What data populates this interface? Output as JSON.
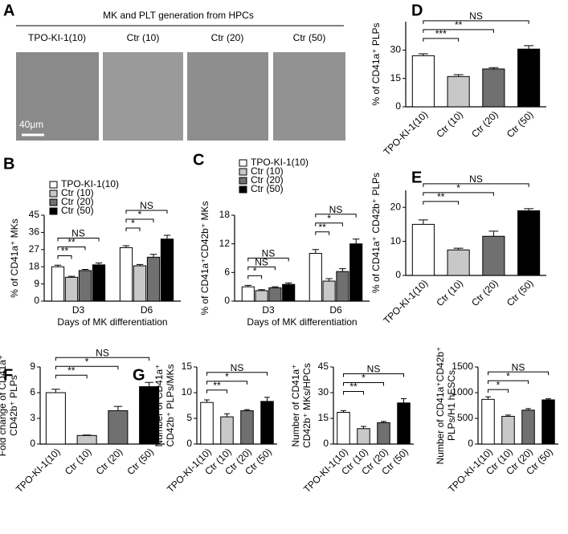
{
  "panel_a": {
    "label": "A",
    "title": "MK and PLT generation from HPCs",
    "images": [
      "TPO-KI-1(10)",
      "Ctr (10)",
      "Ctr (20)",
      "Ctr (50)"
    ],
    "scale_bar": "40μm"
  },
  "chart_data": [
    {
      "type": "bar",
      "panel": "B",
      "ylabel": [
        "% of CD41a⁺ MKs"
      ],
      "xlabel": "Days of MK differentiation",
      "categories": [
        "D3",
        "D6"
      ],
      "series": [
        {
          "name": "TPO-KI-1(10)",
          "color": "#ffffff",
          "values": [
            18,
            28
          ],
          "errors": [
            0.8,
            1
          ]
        },
        {
          "name": "Ctr (10)",
          "color": "#c8c8c8",
          "values": [
            12.5,
            18.5
          ],
          "errors": [
            0.5,
            0.7
          ]
        },
        {
          "name": "Ctr (20)",
          "color": "#707070",
          "values": [
            16,
            23
          ],
          "errors": [
            0.6,
            1.5
          ]
        },
        {
          "name": "Ctr (50)",
          "color": "#000000",
          "values": [
            19,
            32.5
          ],
          "errors": [
            1,
            2
          ]
        }
      ],
      "ylim": [
        0,
        45
      ],
      "yticks": [
        0,
        9,
        18,
        27,
        36,
        45
      ],
      "annotations": [
        [
          "**",
          "**",
          "NS"
        ],
        [
          "*",
          "*",
          "NS"
        ]
      ]
    },
    {
      "type": "bar",
      "panel": "C",
      "ylabel": [
        "% of CD41a⁺CD42b⁺ MKs"
      ],
      "xlabel": "Days of MK differentiation",
      "categories": [
        "D3",
        "D6"
      ],
      "series": [
        {
          "name": "TPO-KI-1(10)",
          "color": "#ffffff",
          "values": [
            3,
            10
          ],
          "errors": [
            0.3,
            0.8
          ]
        },
        {
          "name": "Ctr (10)",
          "color": "#c8c8c8",
          "values": [
            2.2,
            4.2
          ],
          "errors": [
            0.2,
            0.5
          ]
        },
        {
          "name": "Ctr (20)",
          "color": "#707070",
          "values": [
            2.8,
            6.2
          ],
          "errors": [
            0.2,
            0.6
          ]
        },
        {
          "name": "Ctr (50)",
          "color": "#000000",
          "values": [
            3.5,
            12
          ],
          "errors": [
            0.3,
            1
          ]
        }
      ],
      "ylim": [
        0,
        18
      ],
      "yticks": [
        0,
        6,
        12,
        18
      ],
      "annotations": [
        [
          "*",
          "NS",
          "NS"
        ],
        [
          "**",
          "*",
          "NS"
        ]
      ]
    },
    {
      "type": "bar",
      "panel": "D",
      "ylabel": [
        "% of CD41a⁺ PLPs"
      ],
      "categories": [
        "TPO-KI-1(10)",
        "Ctr (10)",
        "Ctr (20)",
        "Ctr (50)"
      ],
      "colors": [
        "#ffffff",
        "#c8c8c8",
        "#707070",
        "#000000"
      ],
      "values": [
        27,
        16,
        20,
        30.5
      ],
      "errors": [
        1,
        1,
        0.7,
        1.8
      ],
      "ylim": [
        0,
        45
      ],
      "yticks": [
        0,
        15,
        30
      ],
      "annotations": [
        "***",
        "**",
        "NS"
      ]
    },
    {
      "type": "bar",
      "panel": "E",
      "ylabel": [
        "% of CD41a⁺ CD42b⁺ PLPs"
      ],
      "categories": [
        "TPO-KI-1(10)",
        "Ctr (10)",
        "Ctr (20)",
        "Ctr (50)"
      ],
      "colors": [
        "#ffffff",
        "#c8c8c8",
        "#707070",
        "#000000"
      ],
      "values": [
        15,
        7.5,
        11.5,
        19
      ],
      "errors": [
        1.3,
        0.5,
        1.5,
        0.6
      ],
      "ylim": [
        0,
        25
      ],
      "yticks": [
        0,
        10,
        20
      ],
      "annotations": [
        "**",
        "*",
        "NS"
      ]
    },
    {
      "type": "bar",
      "panel": "F",
      "ylabel": [
        "Fold change of CD41a⁺",
        "CD42b⁺ PLPs"
      ],
      "categories": [
        "TPO-KI-1(10)",
        "Ctr (10)",
        "Ctr (20)",
        "Ctr (50)"
      ],
      "colors": [
        "#ffffff",
        "#c8c8c8",
        "#707070",
        "#000000"
      ],
      "values": [
        6,
        1,
        3.9,
        6.7
      ],
      "errors": [
        0.4,
        0.05,
        0.5,
        0.5
      ],
      "ylim": [
        0,
        9
      ],
      "yticks": [
        0,
        3,
        6,
        9
      ],
      "annotations": [
        "**",
        "*",
        "NS"
      ]
    },
    {
      "type": "bar",
      "panel": "G",
      "ylabel": [
        "Number of CD41a⁺",
        "CD42b⁺ PLPs/MKs"
      ],
      "categories": [
        "TPO-KI-1(10)",
        "Ctr (10)",
        "Ctr (20)",
        "Ctr (50)"
      ],
      "colors": [
        "#ffffff",
        "#c8c8c8",
        "#707070",
        "#000000"
      ],
      "values": [
        8.1,
        5.3,
        6.5,
        8.3
      ],
      "errors": [
        0.5,
        0.6,
        0.2,
        0.8
      ],
      "ylim": [
        0,
        15
      ],
      "yticks": [
        0,
        5,
        10,
        15
      ],
      "annotations": [
        "**",
        "*",
        "NS"
      ]
    },
    {
      "type": "bar",
      "ylabel": [
        "Number of CD41a⁺",
        "CD42b⁺ MKs/HPCs"
      ],
      "categories": [
        "TPO-KI-1(10)",
        "Ctr (10)",
        "Ctr (20)",
        "Ctr (50)"
      ],
      "colors": [
        "#ffffff",
        "#c8c8c8",
        "#707070",
        "#000000"
      ],
      "values": [
        18.5,
        9,
        12.5,
        24
      ],
      "errors": [
        1,
        1.3,
        0.7,
        2.5
      ],
      "ylim": [
        0,
        45
      ],
      "yticks": [
        0,
        15,
        30,
        45
      ],
      "annotations": [
        "**",
        "*",
        "NS"
      ]
    },
    {
      "type": "bar",
      "ylabel": [
        "Number of CD41a⁺CD42b⁺",
        "PLPs/H1 hESCs"
      ],
      "categories": [
        "TPO-KI-1(10)",
        "Ctr (10)",
        "Ctr (20)",
        "Ctr (50)"
      ],
      "colors": [
        "#ffffff",
        "#c8c8c8",
        "#707070",
        "#000000"
      ],
      "values": [
        870,
        540,
        660,
        860
      ],
      "errors": [
        50,
        25,
        30,
        20
      ],
      "ylim": [
        0,
        1500
      ],
      "yticks": [
        0,
        500,
        1000,
        1500
      ],
      "annotations": [
        "*",
        "*",
        "NS"
      ]
    }
  ]
}
